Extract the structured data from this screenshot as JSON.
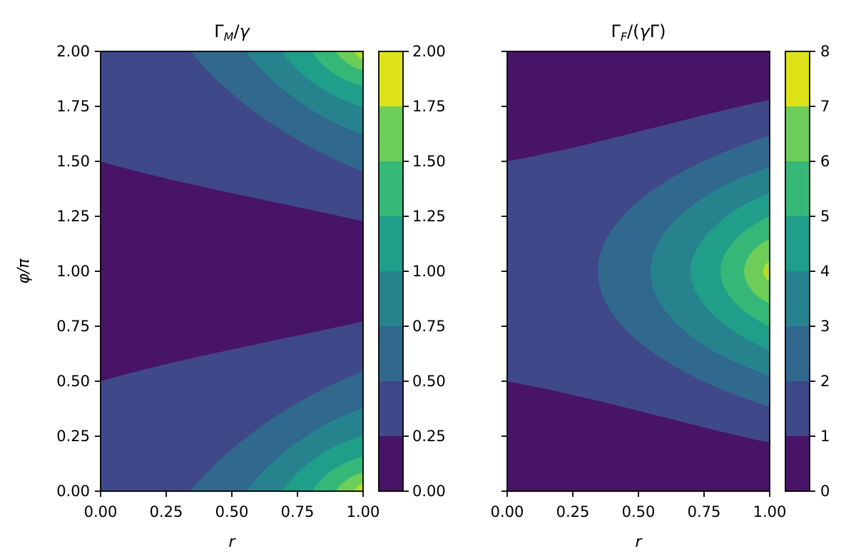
{
  "chart_data": [
    {
      "type": "heatmap",
      "subtype": "filled-contour",
      "title": "ΓM/γ",
      "xlabel": "r",
      "ylabel": "φ/π",
      "xlim": [
        0,
        1
      ],
      "ylim": [
        0,
        2
      ],
      "x_ticks": [
        "0.00",
        "0.25",
        "0.50",
        "0.75",
        "1.00"
      ],
      "y_ticks": [
        "0.00",
        "0.25",
        "0.50",
        "0.75",
        "1.00",
        "1.25",
        "1.50",
        "1.75",
        "2.00"
      ],
      "levels": [
        0,
        0.25,
        0.5,
        0.75,
        1.0,
        1.25,
        1.5,
        1.75,
        2.0
      ],
      "colorbar": {
        "ticks": [
          "0.00",
          "0.25",
          "0.50",
          "0.75",
          "1.00",
          "1.25",
          "1.50",
          "1.75",
          "2.00"
        ],
        "colors": [
          "#481467",
          "#3f4889",
          "#31688e",
          "#26838e",
          "#1f9e89",
          "#35b778",
          "#6dcd59",
          "#b4dd2c",
          "#fde724"
        ]
      },
      "boundaries_phi_over_pi_at_r": {
        "r": [
          0,
          0.25,
          0.5,
          0.75,
          1.0
        ],
        "level_0.25": [
          [
            0.5,
            1.5
          ],
          [
            0.57,
            1.43
          ],
          [
            0.64,
            1.36
          ],
          [
            0.71,
            1.29
          ],
          [
            0.78,
            1.22
          ]
        ]
      },
      "peak": {
        "r": 1.0,
        "phi_over_pi": [
          0,
          2
        ],
        "value": 2.0
      }
    },
    {
      "type": "heatmap",
      "subtype": "filled-contour",
      "title": "ΓF/(γΓ)",
      "xlabel": "r",
      "ylabel": "",
      "xlim": [
        0,
        1
      ],
      "ylim": [
        0,
        2
      ],
      "x_ticks": [
        "0.00",
        "0.25",
        "0.50",
        "0.75",
        "1.00"
      ],
      "levels": [
        0,
        1,
        2,
        3,
        4,
        5,
        6,
        7,
        8
      ],
      "colorbar": {
        "ticks": [
          "0",
          "1",
          "2",
          "3",
          "4",
          "5",
          "6",
          "7",
          "8"
        ],
        "colors": [
          "#481467",
          "#3f4889",
          "#31688e",
          "#26838e",
          "#1f9e89",
          "#35b778",
          "#6dcd59",
          "#b4dd2c",
          "#fde724"
        ]
      },
      "boundaries_phi_over_pi_at_r": {
        "r": [
          0,
          0.25,
          0.5,
          0.75,
          1.0
        ],
        "level_1": [
          [
            0.5,
            1.5
          ],
          [
            0.43,
            1.57
          ],
          [
            0.36,
            1.64
          ],
          [
            0.29,
            1.71
          ],
          [
            0.22,
            1.78
          ]
        ]
      },
      "peak": {
        "r": 1.0,
        "phi_over_pi": 1.0,
        "value": 8.0
      }
    }
  ]
}
